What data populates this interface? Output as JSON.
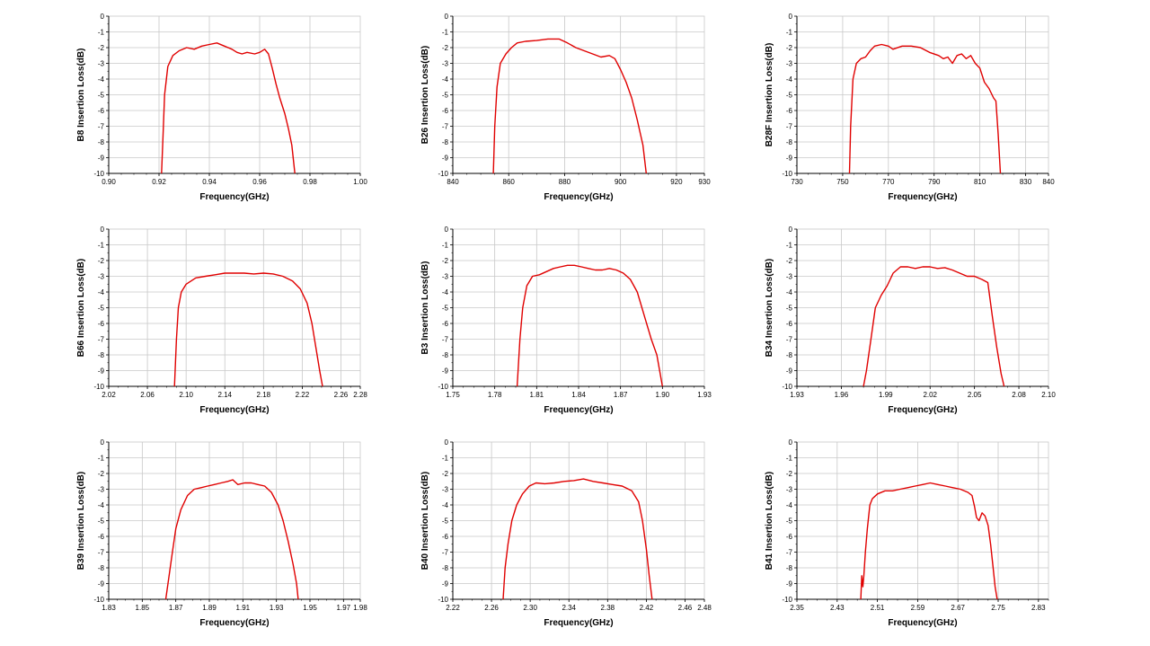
{
  "colors": {
    "curve": "#e00000",
    "grid": "#c8c8c8",
    "axis": "#000000",
    "background": "#ffffff"
  },
  "chart_data": [
    {
      "type": "line",
      "title": "",
      "xlabel": "Frequency(GHz)",
      "ylabel": "B8 Insertion Loss(dB)",
      "xlim": [
        0.9,
        1.0
      ],
      "ylim": [
        -10,
        0
      ],
      "xticks": [
        "0.90",
        "0.92",
        "0.94",
        "0.96",
        "0.98",
        "1.00"
      ],
      "yticks": [
        "0",
        "-1",
        "-2",
        "-3",
        "-4",
        "-5",
        "-6",
        "-7",
        "-8",
        "-9",
        "-10"
      ],
      "grid": true,
      "series": [
        {
          "x": [
            0.921,
            0.9215,
            0.9222,
            0.9235,
            0.9255,
            0.928,
            0.931,
            0.934,
            0.937,
            0.94,
            0.943,
            0.946,
            0.949,
            0.951,
            0.953,
            0.955,
            0.958,
            0.96,
            0.962,
            0.9635,
            0.965,
            0.9665,
            0.968,
            0.97,
            0.9715,
            0.9728,
            0.974
          ],
          "y": [
            -10,
            -8,
            -5,
            -3.2,
            -2.5,
            -2.2,
            -2.0,
            -2.1,
            -1.9,
            -1.8,
            -1.7,
            -1.9,
            -2.1,
            -2.3,
            -2.4,
            -2.3,
            -2.4,
            -2.3,
            -2.1,
            -2.4,
            -3.3,
            -4.3,
            -5.2,
            -6.2,
            -7.2,
            -8.2,
            -10
          ]
        }
      ]
    },
    {
      "type": "line",
      "title": "",
      "xlabel": "Frequency(GHz)",
      "ylabel": "B26 Insertion Loss(dB)",
      "xlim": [
        840,
        930
      ],
      "ylim": [
        -10,
        0
      ],
      "xticks": [
        "840",
        "860",
        "880",
        "900",
        "920",
        "930"
      ],
      "xtick_values": [
        840,
        860,
        880,
        900,
        920,
        930
      ],
      "yticks": [
        "0",
        "-1",
        "-2",
        "-3",
        "-4",
        "-5",
        "-6",
        "-7",
        "-8",
        "-9",
        "-10"
      ],
      "grid": true,
      "series": [
        {
          "x": [
            854.5,
            855,
            855.8,
            857,
            859,
            861,
            863,
            866,
            870,
            874,
            878,
            881,
            884,
            887,
            890,
            893,
            896,
            898,
            900,
            902,
            904,
            906,
            908,
            909.2
          ],
          "y": [
            -10,
            -7,
            -4.5,
            -3,
            -2.4,
            -2.0,
            -1.7,
            -1.6,
            -1.55,
            -1.45,
            -1.45,
            -1.7,
            -2.0,
            -2.2,
            -2.4,
            -2.6,
            -2.5,
            -2.7,
            -3.4,
            -4.2,
            -5.2,
            -6.6,
            -8.2,
            -10
          ]
        }
      ]
    },
    {
      "type": "line",
      "title": "",
      "xlabel": "Frequency(GHz)",
      "ylabel": "B28F Insertion Loss(dB)",
      "xlim": [
        730,
        840
      ],
      "ylim": [
        -10,
        0
      ],
      "xticks": [
        "730",
        "750",
        "770",
        "790",
        "810",
        "830",
        "840"
      ],
      "xtick_values": [
        730,
        750,
        770,
        790,
        810,
        830,
        840
      ],
      "yticks": [
        "0",
        "-1",
        "-2",
        "-3",
        "-4",
        "-5",
        "-6",
        "-7",
        "-8",
        "-9",
        "-10"
      ],
      "grid": true,
      "series": [
        {
          "x": [
            753,
            753.5,
            754.5,
            756,
            758,
            760,
            762,
            764,
            767,
            770,
            772,
            776,
            780,
            784,
            788,
            792,
            794,
            796,
            798,
            800,
            802,
            804,
            806,
            808,
            810,
            812,
            814,
            816,
            817,
            818,
            819
          ],
          "y": [
            -10,
            -7,
            -4,
            -3,
            -2.7,
            -2.6,
            -2.2,
            -1.9,
            -1.8,
            -1.9,
            -2.1,
            -1.9,
            -1.9,
            -2.0,
            -2.3,
            -2.5,
            -2.7,
            -2.6,
            -3.0,
            -2.5,
            -2.4,
            -2.7,
            -2.5,
            -3.0,
            -3.3,
            -4.2,
            -4.6,
            -5.2,
            -5.4,
            -7.5,
            -10
          ]
        }
      ]
    },
    {
      "type": "line",
      "title": "",
      "xlabel": "Frequency(GHz)",
      "ylabel": "B66 Insertion Loss(dB)",
      "xlim": [
        2.02,
        2.28
      ],
      "ylim": [
        -10,
        0
      ],
      "xticks": [
        "2.02",
        "2.06",
        "2.10",
        "2.14",
        "2.18",
        "2.22",
        "2.26",
        "2.28"
      ],
      "xtick_values": [
        2.02,
        2.06,
        2.1,
        2.14,
        2.18,
        2.22,
        2.26,
        2.28
      ],
      "yticks": [
        "0",
        "-1",
        "-2",
        "-3",
        "-4",
        "-5",
        "-6",
        "-7",
        "-8",
        "-9",
        "-10"
      ],
      "grid": true,
      "series": [
        {
          "x": [
            2.088,
            2.09,
            2.092,
            2.095,
            2.1,
            2.11,
            2.12,
            2.13,
            2.14,
            2.15,
            2.16,
            2.17,
            2.18,
            2.19,
            2.2,
            2.21,
            2.218,
            2.225,
            2.23,
            2.234,
            2.238,
            2.241
          ],
          "y": [
            -10,
            -7,
            -5,
            -4,
            -3.5,
            -3.1,
            -3.0,
            -2.9,
            -2.8,
            -2.8,
            -2.8,
            -2.85,
            -2.8,
            -2.85,
            -3.0,
            -3.3,
            -3.8,
            -4.7,
            -6.0,
            -7.5,
            -9,
            -10
          ]
        }
      ]
    },
    {
      "type": "line",
      "title": "",
      "xlabel": "Frequency(GHz)",
      "ylabel": "B3 Insertion Loss(dB)",
      "xlim": [
        1.75,
        1.93
      ],
      "ylim": [
        -10,
        0
      ],
      "xticks": [
        "1.75",
        "1.78",
        "1.81",
        "1.84",
        "1.87",
        "1.90",
        "1.93"
      ],
      "xtick_values": [
        1.75,
        1.78,
        1.81,
        1.84,
        1.87,
        1.9,
        1.93
      ],
      "yticks": [
        "0",
        "-1",
        "-2",
        "-3",
        "-4",
        "-5",
        "-6",
        "-7",
        "-8",
        "-9",
        "-10"
      ],
      "grid": true,
      "series": [
        {
          "x": [
            1.796,
            1.798,
            1.8,
            1.803,
            1.807,
            1.812,
            1.817,
            1.822,
            1.827,
            1.832,
            1.837,
            1.842,
            1.847,
            1.852,
            1.857,
            1.862,
            1.867,
            1.872,
            1.877,
            1.882,
            1.887,
            1.892,
            1.896,
            1.9
          ],
          "y": [
            -10,
            -7,
            -5,
            -3.6,
            -3.0,
            -2.9,
            -2.7,
            -2.5,
            -2.4,
            -2.3,
            -2.3,
            -2.4,
            -2.5,
            -2.6,
            -2.6,
            -2.5,
            -2.6,
            -2.8,
            -3.2,
            -4.0,
            -5.5,
            -7.0,
            -8.0,
            -10
          ]
        }
      ]
    },
    {
      "type": "line",
      "title": "",
      "xlabel": "Frequency(GHz)",
      "ylabel": "B34 Insertion Loss(dB)",
      "xlim": [
        1.93,
        2.1
      ],
      "ylim": [
        -10,
        0
      ],
      "xticks": [
        "1.93",
        "1.96",
        "1.99",
        "2.02",
        "2.05",
        "2.08",
        "2.10"
      ],
      "xtick_values": [
        1.93,
        1.96,
        1.99,
        2.02,
        2.05,
        2.08,
        2.1
      ],
      "yticks": [
        "0",
        "-1",
        "-2",
        "-3",
        "-4",
        "-5",
        "-6",
        "-7",
        "-8",
        "-9",
        "-10"
      ],
      "grid": true,
      "series": [
        {
          "x": [
            1.975,
            1.977,
            1.98,
            1.983,
            1.987,
            1.991,
            1.995,
            2.0,
            2.005,
            2.01,
            2.015,
            2.02,
            2.025,
            2.03,
            2.035,
            2.04,
            2.045,
            2.05,
            2.055,
            2.059,
            2.062,
            2.065,
            2.068,
            2.07
          ],
          "y": [
            -10,
            -9,
            -7,
            -5,
            -4.2,
            -3.6,
            -2.8,
            -2.4,
            -2.4,
            -2.5,
            -2.4,
            -2.4,
            -2.5,
            -2.45,
            -2.6,
            -2.8,
            -3.0,
            -3.0,
            -3.2,
            -3.4,
            -5.5,
            -7.5,
            -9.2,
            -10
          ]
        }
      ]
    },
    {
      "type": "line",
      "title": "",
      "xlabel": "Frequency(GHz)",
      "ylabel": "B39 Insertion Loss(dB)",
      "xlim": [
        1.83,
        1.98
      ],
      "ylim": [
        -10,
        0
      ],
      "xticks": [
        "1.83",
        "1.85",
        "1.87",
        "1.89",
        "1.91",
        "1.93",
        "1.95",
        "1.97",
        "1.98"
      ],
      "xtick_values": [
        1.83,
        1.85,
        1.87,
        1.89,
        1.91,
        1.93,
        1.95,
        1.97,
        1.98
      ],
      "yticks": [
        "0",
        "-1",
        "-2",
        "-3",
        "-4",
        "-5",
        "-6",
        "-7",
        "-8",
        "-9",
        "-10"
      ],
      "grid": true,
      "series": [
        {
          "x": [
            1.864,
            1.866,
            1.868,
            1.87,
            1.873,
            1.877,
            1.881,
            1.885,
            1.889,
            1.893,
            1.897,
            1.901,
            1.904,
            1.907,
            1.911,
            1.915,
            1.919,
            1.923,
            1.927,
            1.931,
            1.934,
            1.937,
            1.94,
            1.942,
            1.943
          ],
          "y": [
            -10,
            -8.5,
            -7,
            -5.5,
            -4.3,
            -3.4,
            -3.0,
            -2.9,
            -2.8,
            -2.7,
            -2.6,
            -2.5,
            -2.4,
            -2.7,
            -2.6,
            -2.6,
            -2.7,
            -2.8,
            -3.2,
            -4.0,
            -5.0,
            -6.3,
            -7.8,
            -9,
            -10
          ]
        }
      ]
    },
    {
      "type": "line",
      "title": "",
      "xlabel": "Frequency(GHz)",
      "ylabel": "B40 Insertion Loss(dB)",
      "xlim": [
        2.22,
        2.48
      ],
      "ylim": [
        -10,
        0
      ],
      "xticks": [
        "2.22",
        "2.26",
        "2.30",
        "2.34",
        "2.38",
        "2.42",
        "2.46",
        "2.48"
      ],
      "xtick_values": [
        2.22,
        2.26,
        2.3,
        2.34,
        2.38,
        2.42,
        2.46,
        2.48
      ],
      "yticks": [
        "0",
        "-1",
        "-2",
        "-3",
        "-4",
        "-5",
        "-6",
        "-7",
        "-8",
        "-9",
        "-10"
      ],
      "grid": true,
      "series": [
        {
          "x": [
            2.272,
            2.274,
            2.277,
            2.281,
            2.286,
            2.292,
            2.299,
            2.306,
            2.315,
            2.325,
            2.335,
            2.345,
            2.355,
            2.365,
            2.375,
            2.385,
            2.395,
            2.405,
            2.412,
            2.416,
            2.42,
            2.423,
            2.426
          ],
          "y": [
            -10,
            -8,
            -6.5,
            -5,
            -4,
            -3.3,
            -2.8,
            -2.6,
            -2.65,
            -2.6,
            -2.5,
            -2.45,
            -2.35,
            -2.5,
            -2.6,
            -2.7,
            -2.8,
            -3.1,
            -3.8,
            -5.0,
            -6.8,
            -8.5,
            -10
          ]
        }
      ]
    },
    {
      "type": "line",
      "title": "",
      "xlabel": "Frequency(GHz)",
      "ylabel": "B41 Insertion Loss(dB)",
      "xlim": [
        2.35,
        2.85
      ],
      "ylim": [
        -10,
        0
      ],
      "xticks": [
        "2.35",
        "2.43",
        "2.51",
        "2.59",
        "2.67",
        "2.75",
        "2.83"
      ],
      "xtick_values": [
        2.35,
        2.43,
        2.51,
        2.59,
        2.67,
        2.75,
        2.83
      ],
      "yticks": [
        "0",
        "-1",
        "-2",
        "-3",
        "-4",
        "-5",
        "-6",
        "-7",
        "-8",
        "-9",
        "-10"
      ],
      "grid": true,
      "series": [
        {
          "x": [
            2.477,
            2.479,
            2.481,
            2.483,
            2.486,
            2.49,
            2.495,
            2.5,
            2.51,
            2.525,
            2.54,
            2.555,
            2.57,
            2.585,
            2.6,
            2.615,
            2.63,
            2.645,
            2.66,
            2.675,
            2.69,
            2.698,
            2.703,
            2.707,
            2.712,
            2.718,
            2.724,
            2.73,
            2.735,
            2.74,
            2.744,
            2.748
          ],
          "y": [
            -10,
            -8.5,
            -9.2,
            -8.5,
            -7,
            -5.5,
            -4,
            -3.6,
            -3.3,
            -3.1,
            -3.1,
            -3.0,
            -2.9,
            -2.8,
            -2.7,
            -2.6,
            -2.7,
            -2.8,
            -2.9,
            -3.0,
            -3.2,
            -3.4,
            -4.1,
            -4.8,
            -5.0,
            -4.5,
            -4.7,
            -5.3,
            -6.5,
            -8.0,
            -9.2,
            -10
          ]
        }
      ]
    }
  ]
}
